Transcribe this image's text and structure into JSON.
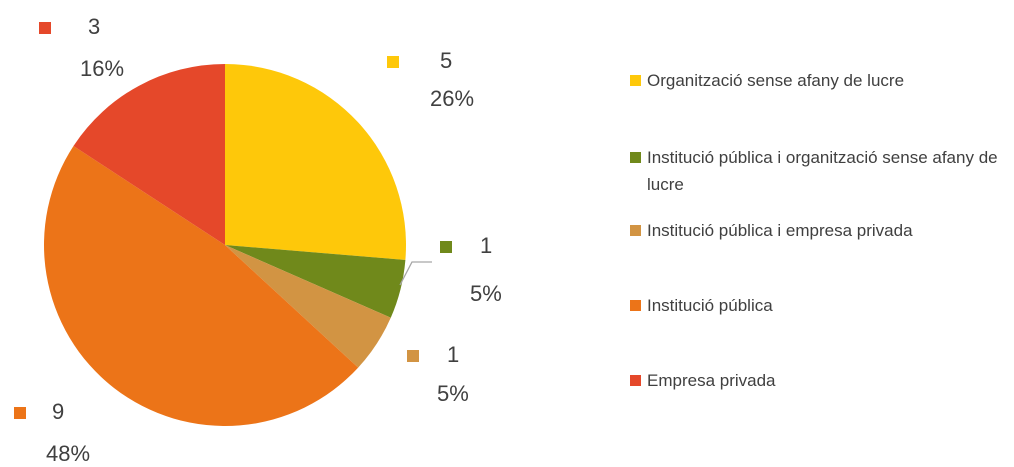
{
  "chart_data": {
    "type": "pie",
    "categories": [
      "Organització sense afany de lucre",
      "Institució pública i organització sense afany de lucre",
      "Institució pública i empresa privada",
      "Institució pública",
      "Empresa privada"
    ],
    "values": [
      5,
      1,
      1,
      9,
      3
    ],
    "percent_labels": [
      "26%",
      "5%",
      "5%",
      "48%",
      "16%"
    ],
    "colors": [
      "#fec80a",
      "#70891b",
      "#d29443",
      "#ec7418",
      "#e5482a"
    ],
    "legend": "right"
  }
}
